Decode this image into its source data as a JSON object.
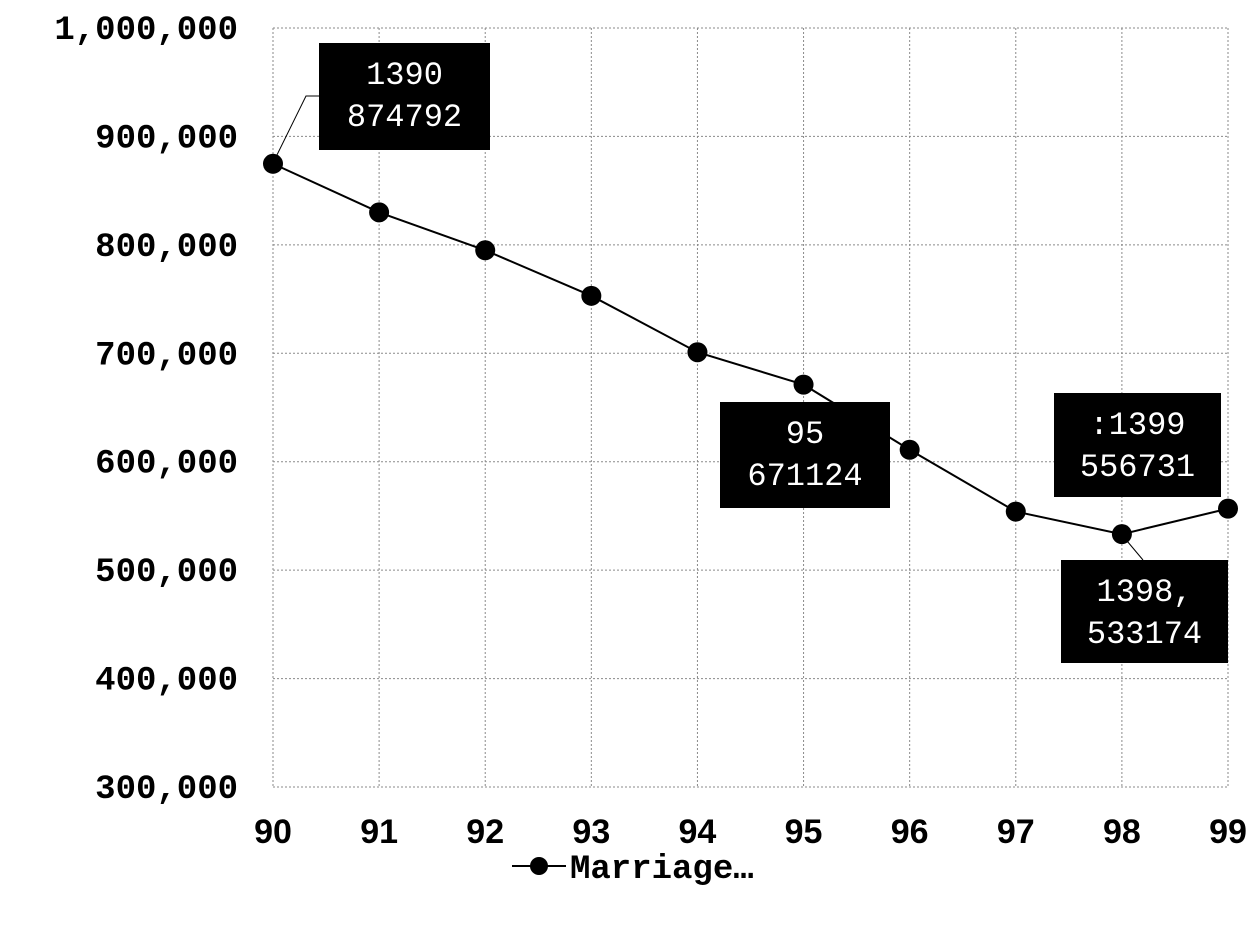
{
  "chart_data": {
    "type": "line",
    "categories": [
      "90",
      "91",
      "92",
      "93",
      "94",
      "95",
      "96",
      "97",
      "98",
      "99"
    ],
    "series": [
      {
        "name": "Marriage…",
        "values": [
          874792,
          830000,
          795000,
          753000,
          701000,
          671124,
          611000,
          554000,
          533174,
          556731
        ],
        "color": "#000000",
        "marker": "circle"
      }
    ],
    "ylim": [
      300000,
      1000000
    ],
    "yticks": [
      "1,000,000",
      "900,000",
      "800,000",
      "700,000",
      "600,000",
      "500,000",
      "400,000",
      "300,000"
    ],
    "grid": true,
    "legend": "bottom",
    "data_labels": [
      {
        "index": 0,
        "lines": [
          "1390",
          "874792"
        ]
      },
      {
        "index": 5,
        "lines": [
          "95",
          "671124"
        ]
      },
      {
        "index": 8,
        "lines": [
          "1398,",
          "533174"
        ]
      },
      {
        "index": 9,
        "lines": [
          ":1399",
          "556731"
        ]
      }
    ]
  }
}
